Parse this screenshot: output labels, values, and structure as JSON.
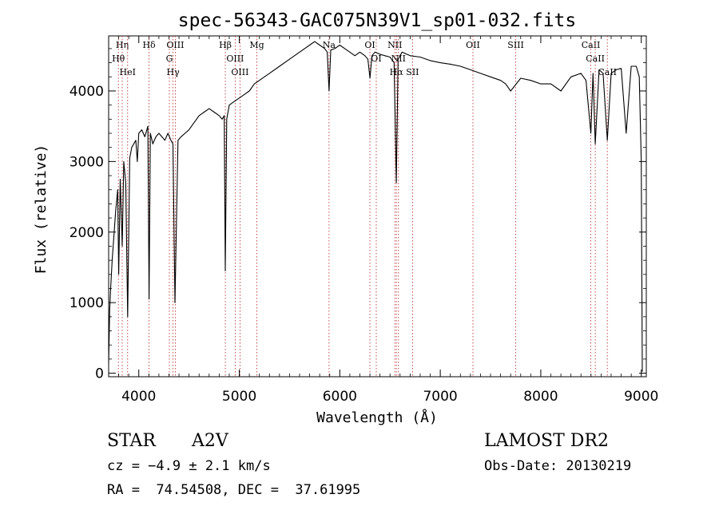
{
  "chart_data": {
    "type": "line",
    "title": "spec-56343-GAC075N39V1_sp01-032.fits",
    "xlabel": "Wavelength (Å)",
    "ylabel": "Flux (relative)",
    "xlim": [
      3700,
      9050
    ],
    "ylim": [
      -50,
      4780
    ],
    "x_ticks": [
      4000,
      5000,
      6000,
      7000,
      8000,
      9000
    ],
    "y_ticks": [
      0,
      1000,
      2000,
      3000,
      4000
    ],
    "grid": false,
    "series": [
      {
        "x": [
          3700,
          3710,
          3720,
          3735,
          3750,
          3770,
          3790,
          3800,
          3815,
          3835,
          3850,
          3870,
          3889,
          3910,
          3930,
          3950,
          3970,
          3985,
          4000,
          4030,
          4060,
          4090,
          4102,
          4115,
          4140,
          4170,
          4200,
          4230,
          4260,
          4290,
          4320,
          4340,
          4360,
          4390,
          4420,
          4460,
          4500,
          4550,
          4600,
          4650,
          4700,
          4750,
          4800,
          4830,
          4850,
          4861,
          4875,
          4900,
          4950,
          5000,
          5050,
          5100,
          5150,
          5200,
          5300,
          5400,
          5500,
          5600,
          5700,
          5750,
          5800,
          5850,
          5875,
          5893,
          5910,
          5950,
          6000,
          6050,
          6100,
          6150,
          6200,
          6250,
          6280,
          6300,
          6320,
          6350,
          6400,
          6450,
          6500,
          6540,
          6563,
          6580,
          6620,
          6700,
          6800,
          6900,
          7000,
          7100,
          7200,
          7300,
          7400,
          7500,
          7600,
          7650,
          7700,
          7800,
          7900,
          8000,
          8100,
          8200,
          8300,
          8400,
          8450,
          8498,
          8520,
          8542,
          8580,
          8620,
          8662,
          8700,
          8750,
          8800,
          8850,
          8900,
          8950,
          8980,
          9000,
          9010
        ],
        "y": [
          150,
          900,
          1200,
          1600,
          1900,
          2300,
          2600,
          1400,
          2750,
          1800,
          3000,
          2700,
          800,
          3050,
          3200,
          3250,
          3300,
          3000,
          3400,
          3450,
          3350,
          3500,
          1050,
          3400,
          3250,
          3350,
          3400,
          3350,
          3300,
          3400,
          3300,
          3250,
          1000,
          3300,
          3350,
          3400,
          3450,
          3550,
          3650,
          3700,
          3750,
          3700,
          3650,
          3600,
          3650,
          1450,
          3600,
          3800,
          3850,
          3900,
          3950,
          4000,
          4100,
          4150,
          4250,
          4350,
          4450,
          4550,
          4650,
          4700,
          4650,
          4600,
          4550,
          4000,
          4580,
          4600,
          4650,
          4600,
          4550,
          4500,
          4550,
          4500,
          4450,
          4180,
          4500,
          4550,
          4520,
          4500,
          4480,
          4400,
          2700,
          4450,
          4550,
          4500,
          4480,
          4430,
          4400,
          4380,
          4350,
          4300,
          4250,
          4200,
          4150,
          4100,
          4000,
          4180,
          4150,
          4100,
          4100,
          4000,
          4200,
          4250,
          4150,
          3400,
          4250,
          3250,
          4300,
          4250,
          3300,
          4250,
          4300,
          4320,
          3400,
          4350,
          4350,
          4200,
          3000,
          20
        ]
      }
    ],
    "lines": [
      {
        "label": "Hη",
        "x": 3835
      },
      {
        "label": "Hθ",
        "x": 3797
      },
      {
        "label": "HeI",
        "x": 3889
      },
      {
        "label": "Hδ",
        "x": 4102
      },
      {
        "label": "G",
        "x": 4304
      },
      {
        "label": "OIII",
        "x": 4363
      },
      {
        "label": "Hγ",
        "x": 4341
      },
      {
        "label": "Hβ",
        "x": 4861
      },
      {
        "label": "OIII",
        "x": 4959
      },
      {
        "label": "OIII",
        "x": 5007
      },
      {
        "label": "Mg",
        "x": 5175
      },
      {
        "label": "Na",
        "x": 5893
      },
      {
        "label": "OI",
        "x": 6300
      },
      {
        "label": "OI",
        "x": 6363
      },
      {
        "label": "NII",
        "x": 6548
      },
      {
        "label": "Hα",
        "x": 6563
      },
      {
        "label": "NII",
        "x": 6584
      },
      {
        "label": "SII",
        "x": 6724
      },
      {
        "label": "OII",
        "x": 7325
      },
      {
        "label": "SIII",
        "x": 7751
      },
      {
        "label": "CaII",
        "x": 8498
      },
      {
        "label": "CaII",
        "x": 8542
      },
      {
        "label": "CaII",
        "x": 8662
      }
    ]
  },
  "info": {
    "class": "STAR",
    "subclass": "A2V",
    "survey": "LAMOST DR2",
    "cz": "cz = −4.9 ± 2.1 km/s",
    "obs_date": "Obs-Date: 20130219",
    "radec": "RA =  74.54508, DEC =  37.61995"
  }
}
